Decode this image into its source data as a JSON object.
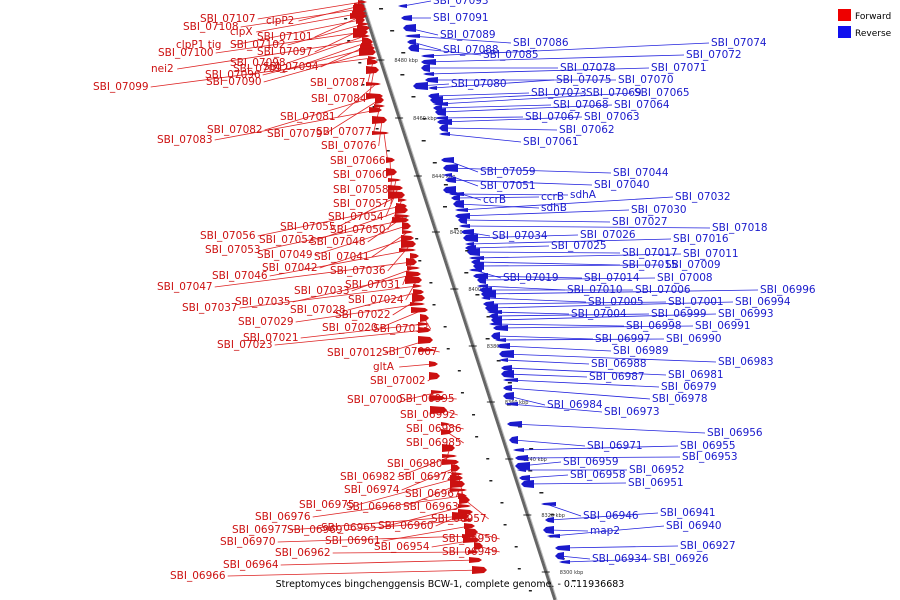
{
  "caption": "Streptomyces bingchenggensis BCW-1, complete genome. - 0..11936683",
  "legend": [
    {
      "label": "Forward",
      "color": "#ee0000"
    },
    {
      "label": "Reverse",
      "color": "#1010ee"
    }
  ],
  "colors": {
    "forward": "#cc1111",
    "reverse": "#1a1acc",
    "backbone": "#666666"
  },
  "scale_ticks": [
    "8480 kbp",
    "8460 kbp",
    "8440 kbp",
    "8420 kbp",
    "8400 kbp",
    "8380 kbp",
    "8360 kbp",
    "8340 kbp",
    "8320 kbp",
    "8300 kbp"
  ],
  "forward_genes": [
    "SBI_07107",
    "clpP2",
    "SBI_07108",
    "clpX",
    "SBI_07101",
    "clpP1 tig",
    "SBI_07102",
    "SBI_07097",
    "SBI_07100",
    "SBI_07098",
    "nei2",
    "SBI_07092",
    "SBI_07094",
    "SBI_07096",
    "SBI_07090",
    "SBI_07099",
    "SBI_07087",
    "SBI_07084",
    "SBI_07081",
    "SBI_07082",
    "SBI_07079",
    "SBI_07077",
    "SBI_07083",
    "SBI_07076",
    "SBI_07066",
    "SBI_07060",
    "SBI_07058",
    "SBI_07057",
    "SBI_07054",
    "SBI_07055",
    "SBI_07050",
    "SBI_07056",
    "SBI_07052",
    "SBI_07048",
    "SBI_07053",
    "SBI_07049",
    "SBI_07041",
    "SBI_07042",
    "SBI_07036",
    "SBI_07046",
    "SBI_07031",
    "SBI_07047",
    "SBI_07033",
    "SBI_07035",
    "SBI_07024",
    "SBI_07037",
    "SBI_07028",
    "SBI_07022",
    "SBI_07029",
    "SBI_07020",
    "SBI_07013",
    "SBI_07021",
    "SBI_07023",
    "SBI_07012",
    "SBI_07007",
    "gltA",
    "SBI_07002",
    "SBI_07000",
    "SBI_06995",
    "SBI_06992",
    "SBI_06986",
    "SBI_06985",
    "SBI_06980",
    "SBI_06982",
    "SBI_06972",
    "SBI_06974",
    "SBI_06967",
    "SBI_06975",
    "SBI_06968",
    "SBI_06963",
    "SBI_06976",
    "SBI_06957",
    "SBI_06965",
    "SBI_06960",
    "SBI_06977",
    "SBI_06969",
    "SBI_06961",
    "SBI_06950",
    "SBI_06970",
    "SBI_06954",
    "SBI_06949",
    "SBI_06962",
    "SBI_06964",
    "SBI_06966"
  ],
  "reverse_genes": [
    "SBI_07093",
    "SBI_07091",
    "SBI_07089",
    "SBI_07086",
    "SBI_07088",
    "SBI_07085",
    "SBI_07074",
    "SBI_07072",
    "SBI_07078",
    "SBI_07071",
    "SBI_07070",
    "SBI_07080",
    "SBI_07075",
    "SBI_07073",
    "SBI_07069",
    "SBI_07065",
    "SBI_07068",
    "SBI_07064",
    "SBI_07067",
    "SBI_07063",
    "SBI_07062",
    "SBI_07061",
    "SBI_07059",
    "SBI_07044",
    "SBI_07051",
    "SBI_07040",
    "ccrB",
    "sdhA",
    "ccrB",
    "sdhB",
    "SBI_07032",
    "SBI_07030",
    "SBI_07027",
    "SBI_07018",
    "SBI_07034",
    "SBI_07026",
    "SBI_07016",
    "SBI_07025",
    "SBI_07017",
    "SBI_07011",
    "SBI_07015",
    "SBI_07009",
    "SBI_07019",
    "SBI_07014",
    "SBI_07008",
    "SBI_07010",
    "SBI_07006",
    "SBI_06996",
    "SBI_07005",
    "SBI_07001",
    "SBI_06994",
    "SBI_07004",
    "SBI_06999",
    "SBI_06993",
    "SBI_06998",
    "SBI_06991",
    "SBI_06997",
    "SBI_06990",
    "SBI_06989",
    "SBI_06983",
    "SBI_06988",
    "SBI_06981",
    "SBI_06987",
    "SBI_06979",
    "SBI_06978",
    "SBI_06984",
    "SBI_06973",
    "SBI_06956",
    "SBI_06971",
    "SBI_06955",
    "SBI_06953",
    "SBI_06959",
    "SBI_06952",
    "SBI_06958",
    "SBI_06951",
    "SBI_06946",
    "SBI_06941",
    "map2",
    "SBI_06940",
    "SBI_06927",
    "SBI_06934",
    "SBI_06926"
  ]
}
